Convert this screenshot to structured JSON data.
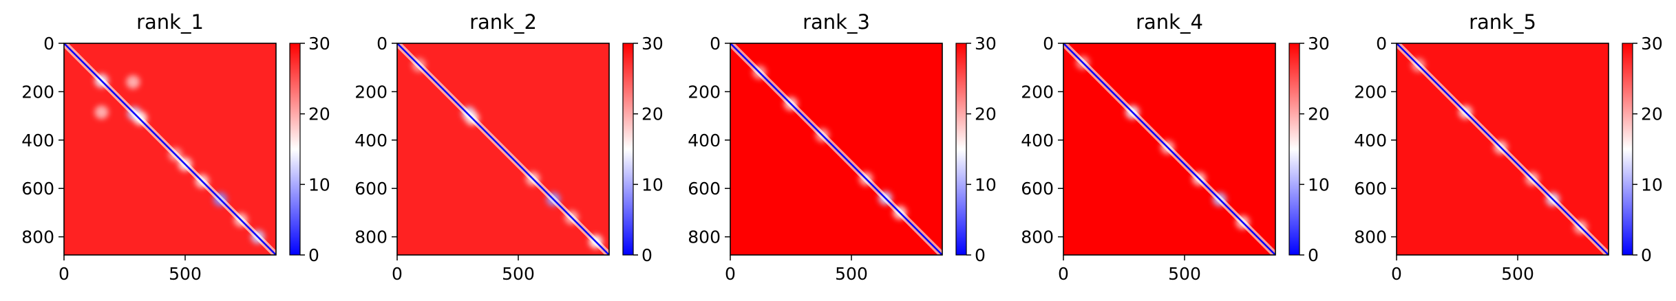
{
  "chart_data": [
    {
      "type": "heatmap",
      "title": "rank_1",
      "xlabel": "",
      "ylabel": "",
      "xlim": [
        0,
        875
      ],
      "ylim": [
        875,
        0
      ],
      "xticks": [
        0,
        500
      ],
      "yticks": [
        0,
        200,
        400,
        600,
        800
      ],
      "colorbar": {
        "min": 0,
        "max": 30,
        "ticks": [
          0,
          10,
          20,
          30
        ],
        "colors": [
          "#0000ff",
          "#ffffff",
          "#ff0000"
        ]
      },
      "grid": false,
      "diagonal_min_value": 0,
      "background_value": 28,
      "low_value_features": [
        {
          "x": 155,
          "y": 155,
          "value": 14
        },
        {
          "x": 285,
          "y": 160,
          "value": 19
        },
        {
          "x": 155,
          "y": 285,
          "value": 19
        },
        {
          "x": 290,
          "y": 290,
          "value": 12
        },
        {
          "x": 315,
          "y": 310,
          "value": 15
        },
        {
          "x": 460,
          "y": 460,
          "value": 20
        },
        {
          "x": 500,
          "y": 500,
          "value": 16
        },
        {
          "x": 570,
          "y": 570,
          "value": 17
        },
        {
          "x": 645,
          "y": 645,
          "value": 8
        },
        {
          "x": 730,
          "y": 730,
          "value": 18
        },
        {
          "x": 800,
          "y": 800,
          "value": 12
        }
      ]
    },
    {
      "type": "heatmap",
      "title": "rank_2",
      "xlabel": "",
      "ylabel": "",
      "xlim": [
        0,
        875
      ],
      "ylim": [
        875,
        0
      ],
      "xticks": [
        0,
        500
      ],
      "yticks": [
        0,
        200,
        400,
        600,
        800
      ],
      "colorbar": {
        "min": 0,
        "max": 30,
        "ticks": [
          0,
          10,
          20,
          30
        ],
        "colors": [
          "#0000ff",
          "#ffffff",
          "#ff0000"
        ]
      },
      "grid": false,
      "diagonal_min_value": 0,
      "background_value": 28,
      "low_value_features": [
        {
          "x": 90,
          "y": 90,
          "value": 20
        },
        {
          "x": 295,
          "y": 290,
          "value": 13
        },
        {
          "x": 310,
          "y": 310,
          "value": 16
        },
        {
          "x": 560,
          "y": 560,
          "value": 18
        },
        {
          "x": 645,
          "y": 645,
          "value": 9
        },
        {
          "x": 720,
          "y": 720,
          "value": 19
        },
        {
          "x": 820,
          "y": 820,
          "value": 15
        }
      ]
    },
    {
      "type": "heatmap",
      "title": "rank_3",
      "xlabel": "",
      "ylabel": "",
      "xlim": [
        0,
        875
      ],
      "ylim": [
        875,
        0
      ],
      "xticks": [
        0,
        500
      ],
      "yticks": [
        0,
        200,
        400,
        600,
        800
      ],
      "colorbar": {
        "min": 0,
        "max": 30,
        "ticks": [
          0,
          10,
          20,
          30
        ],
        "colors": [
          "#0000ff",
          "#ffffff",
          "#ff0000"
        ]
      },
      "grid": false,
      "diagonal_min_value": 0,
      "background_value": 30,
      "low_value_features": [
        {
          "x": 120,
          "y": 120,
          "value": 20
        },
        {
          "x": 250,
          "y": 250,
          "value": 18
        },
        {
          "x": 380,
          "y": 380,
          "value": 20
        },
        {
          "x": 560,
          "y": 560,
          "value": 19
        },
        {
          "x": 640,
          "y": 640,
          "value": 12
        },
        {
          "x": 700,
          "y": 700,
          "value": 17
        }
      ]
    },
    {
      "type": "heatmap",
      "title": "rank_4",
      "xlabel": "",
      "ylabel": "",
      "xlim": [
        0,
        875
      ],
      "ylim": [
        875,
        0
      ],
      "xticks": [
        0,
        500
      ],
      "yticks": [
        0,
        200,
        400,
        600,
        800
      ],
      "colorbar": {
        "min": 0,
        "max": 30,
        "ticks": [
          0,
          10,
          20,
          30
        ],
        "colors": [
          "#0000ff",
          "#ffffff",
          "#ff0000"
        ]
      },
      "grid": false,
      "diagonal_min_value": 0,
      "background_value": 30,
      "low_value_features": [
        {
          "x": 80,
          "y": 80,
          "value": 21
        },
        {
          "x": 285,
          "y": 285,
          "value": 14
        },
        {
          "x": 430,
          "y": 430,
          "value": 19
        },
        {
          "x": 560,
          "y": 560,
          "value": 18
        },
        {
          "x": 645,
          "y": 645,
          "value": 11
        },
        {
          "x": 740,
          "y": 740,
          "value": 18
        }
      ]
    },
    {
      "type": "heatmap",
      "title": "rank_5",
      "xlabel": "",
      "ylabel": "",
      "xlim": [
        0,
        875
      ],
      "ylim": [
        875,
        0
      ],
      "xticks": [
        0,
        500
      ],
      "yticks": [
        0,
        200,
        400,
        600,
        800
      ],
      "colorbar": {
        "min": 0,
        "max": 30,
        "ticks": [
          0,
          10,
          20,
          30
        ],
        "colors": [
          "#0000ff",
          "#ffffff",
          "#ff0000"
        ]
      },
      "grid": false,
      "diagonal_min_value": 0,
      "background_value": 29,
      "low_value_features": [
        {
          "x": 90,
          "y": 90,
          "value": 20
        },
        {
          "x": 285,
          "y": 285,
          "value": 17
        },
        {
          "x": 430,
          "y": 430,
          "value": 18
        },
        {
          "x": 560,
          "y": 560,
          "value": 19
        },
        {
          "x": 645,
          "y": 645,
          "value": 13
        },
        {
          "x": 760,
          "y": 760,
          "value": 19
        }
      ]
    }
  ]
}
